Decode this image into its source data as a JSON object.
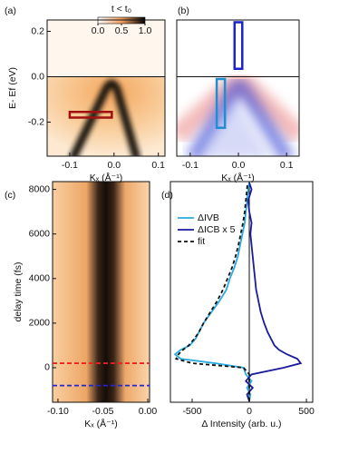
{
  "chart_data": [
    {
      "type": "image",
      "label": "(a)",
      "xlabel": "Kₓ (Å⁻¹)",
      "ylabel": "E- Ef (eV)",
      "xlim": [
        -0.151,
        0.115
      ],
      "xticks": [
        -0.1,
        {
          "value": 0,
          "label": "0.0"
        },
        0.1
      ],
      "ylim": [
        -0.35,
        0.25
      ],
      "yticks": [
        -0.2,
        {
          "value": 0,
          "label": "0.0"
        },
        0.2
      ],
      "colorbar": {
        "title": "t < t₀",
        "ticks": [
          {
            "value": 0,
            "label": "0.0"
          },
          0.5,
          {
            "value": 1,
            "label": "1.0"
          }
        ]
      },
      "boxes": [
        {
          "color": "#a01010",
          "xlim": [
            -0.1,
            -0.005
          ],
          "ylim": [
            -0.18,
            -0.155
          ]
        }
      ]
    },
    {
      "type": "image",
      "label": "(b)",
      "xlabel": "Kₓ (Å⁻¹)",
      "xlim": [
        -0.128,
        0.126
      ],
      "xticks": [
        -0.1,
        {
          "value": 0,
          "label": "0.0"
        },
        0.1
      ],
      "ylim": [
        -0.35,
        0.25
      ],
      "boxes": [
        {
          "color": "#1a22c8",
          "xlim": [
            -0.008,
            0.008
          ],
          "ylim": [
            0.035,
            0.24
          ]
        },
        {
          "color": "#1f8fd0",
          "xlim": [
            -0.045,
            -0.028
          ],
          "ylim": [
            -0.225,
            -0.01
          ]
        }
      ]
    },
    {
      "type": "image",
      "label": "(c)",
      "xlabel": "Kₓ (Å⁻¹)",
      "ylabel": "delay time (fs)",
      "xlim": [
        -0.106,
        0.002
      ],
      "xticks": [
        {
          "value": -0.1,
          "label": "-0.10"
        },
        {
          "value": -0.05,
          "label": "-0.05"
        },
        {
          "value": 0,
          "label": "0.00"
        }
      ],
      "ylim": [
        -1550,
        8350
      ],
      "yticks": [
        0,
        2000,
        4000,
        6000,
        8000
      ],
      "hlines": [
        {
          "value": 200,
          "color": "#e8231f"
        },
        {
          "value": -800,
          "color": "#2326d8"
        }
      ]
    },
    {
      "type": "line",
      "label": "(d)",
      "xlabel": "Δ Intensity (arb. u.)",
      "xlim": [
        -690,
        555
      ],
      "xticks": [
        -500,
        0,
        500
      ],
      "ylim": [
        -1550,
        8350
      ],
      "y": [
        -1500,
        -1200,
        -900,
        -600,
        -300,
        0,
        200,
        400,
        600,
        800,
        1000,
        1300,
        1600,
        2000,
        2500,
        3000,
        3500,
        4000,
        4500,
        5000,
        5500,
        6000,
        6500,
        7000,
        7500,
        8000,
        8300
      ],
      "series": [
        {
          "name": "ΔIVB",
          "color": "#29abe2",
          "style": "solid",
          "values": [
            0,
            10,
            -20,
            20,
            -30,
            -50,
            -300,
            -600,
            -650,
            -600,
            -520,
            -470,
            -440,
            -400,
            -330,
            -260,
            -200,
            -170,
            -130,
            -100,
            -80,
            -60,
            -40,
            -30,
            -20,
            -10,
            0
          ]
        },
        {
          "name": "ΔICB x 5",
          "color": "#1a1a9c",
          "style": "solid",
          "values": [
            0,
            -20,
            30,
            -30,
            20,
            300,
            450,
            420,
            330,
            260,
            220,
            190,
            160,
            130,
            100,
            80,
            60,
            50,
            40,
            30,
            20,
            10,
            20,
            0,
            -10,
            20,
            0
          ]
        },
        {
          "name": "fit",
          "color": "#111111",
          "style": "dashed",
          "values": [
            0,
            0,
            0,
            0,
            0,
            -50,
            -500,
            -640,
            -620,
            -580,
            -530,
            -480,
            -440,
            -400,
            -340,
            -280,
            -230,
            -190,
            -150,
            -120,
            -95,
            -75,
            -55,
            -40,
            -30,
            -20,
            -15
          ]
        }
      ]
    }
  ]
}
